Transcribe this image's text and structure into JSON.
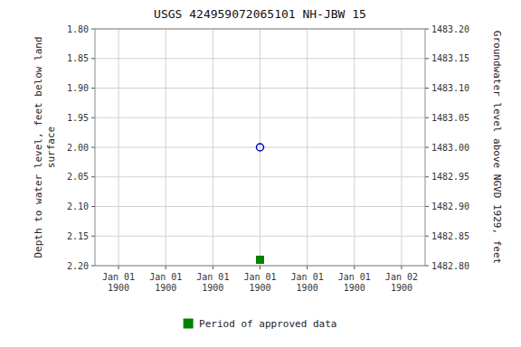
{
  "chart_data": {
    "type": "scatter",
    "title": "USGS 424959072065101 NH-JBW   15",
    "ylabel": "Depth to water level, feet below land\nsurface",
    "y2label": "Groundwater level above NGVD 1929, feet",
    "categories": [
      "Jan 01\n1900",
      "Jan 01\n1900",
      "Jan 01\n1900",
      "Jan 01\n1900",
      "Jan 01\n1900",
      "Jan 01\n1900",
      "Jan 02\n1900"
    ],
    "series": [
      {
        "color": "#0000bb",
        "marker": "circle",
        "values": [
          null,
          null,
          null,
          2.0,
          null,
          null,
          null
        ]
      },
      {
        "name": "Period of approved data",
        "color": "#008000",
        "marker": "square",
        "values": [
          null,
          null,
          null,
          2.19,
          null,
          null,
          null
        ]
      }
    ],
    "ylim": [
      2.2,
      1.8
    ],
    "yticks": [
      {
        "value": 1.8,
        "label": "1.80"
      },
      {
        "value": 1.85,
        "label": "1.85"
      },
      {
        "value": 1.9,
        "label": "1.90"
      },
      {
        "value": 1.95,
        "label": "1.95"
      },
      {
        "value": 2.0,
        "label": "2.00"
      },
      {
        "value": 2.05,
        "label": "2.05"
      },
      {
        "value": 2.1,
        "label": "2.10"
      },
      {
        "value": 2.15,
        "label": "2.15"
      },
      {
        "value": 2.2,
        "label": "2.20"
      }
    ],
    "y2lim": [
      1482.8,
      1483.2
    ],
    "y2ticks": [
      {
        "value": 1483.2,
        "label": "1483.20"
      },
      {
        "value": 1483.15,
        "label": "1483.15"
      },
      {
        "value": 1483.1,
        "label": "1483.10"
      },
      {
        "value": 1483.05,
        "label": "1483.05"
      },
      {
        "value": 1483.0,
        "label": "1483.00"
      },
      {
        "value": 1482.95,
        "label": "1482.95"
      },
      {
        "value": 1482.9,
        "label": "1482.90"
      },
      {
        "value": 1482.85,
        "label": "1482.85"
      },
      {
        "value": 1482.8,
        "label": "1482.80"
      }
    ],
    "grid": true,
    "legend": "bottom"
  }
}
